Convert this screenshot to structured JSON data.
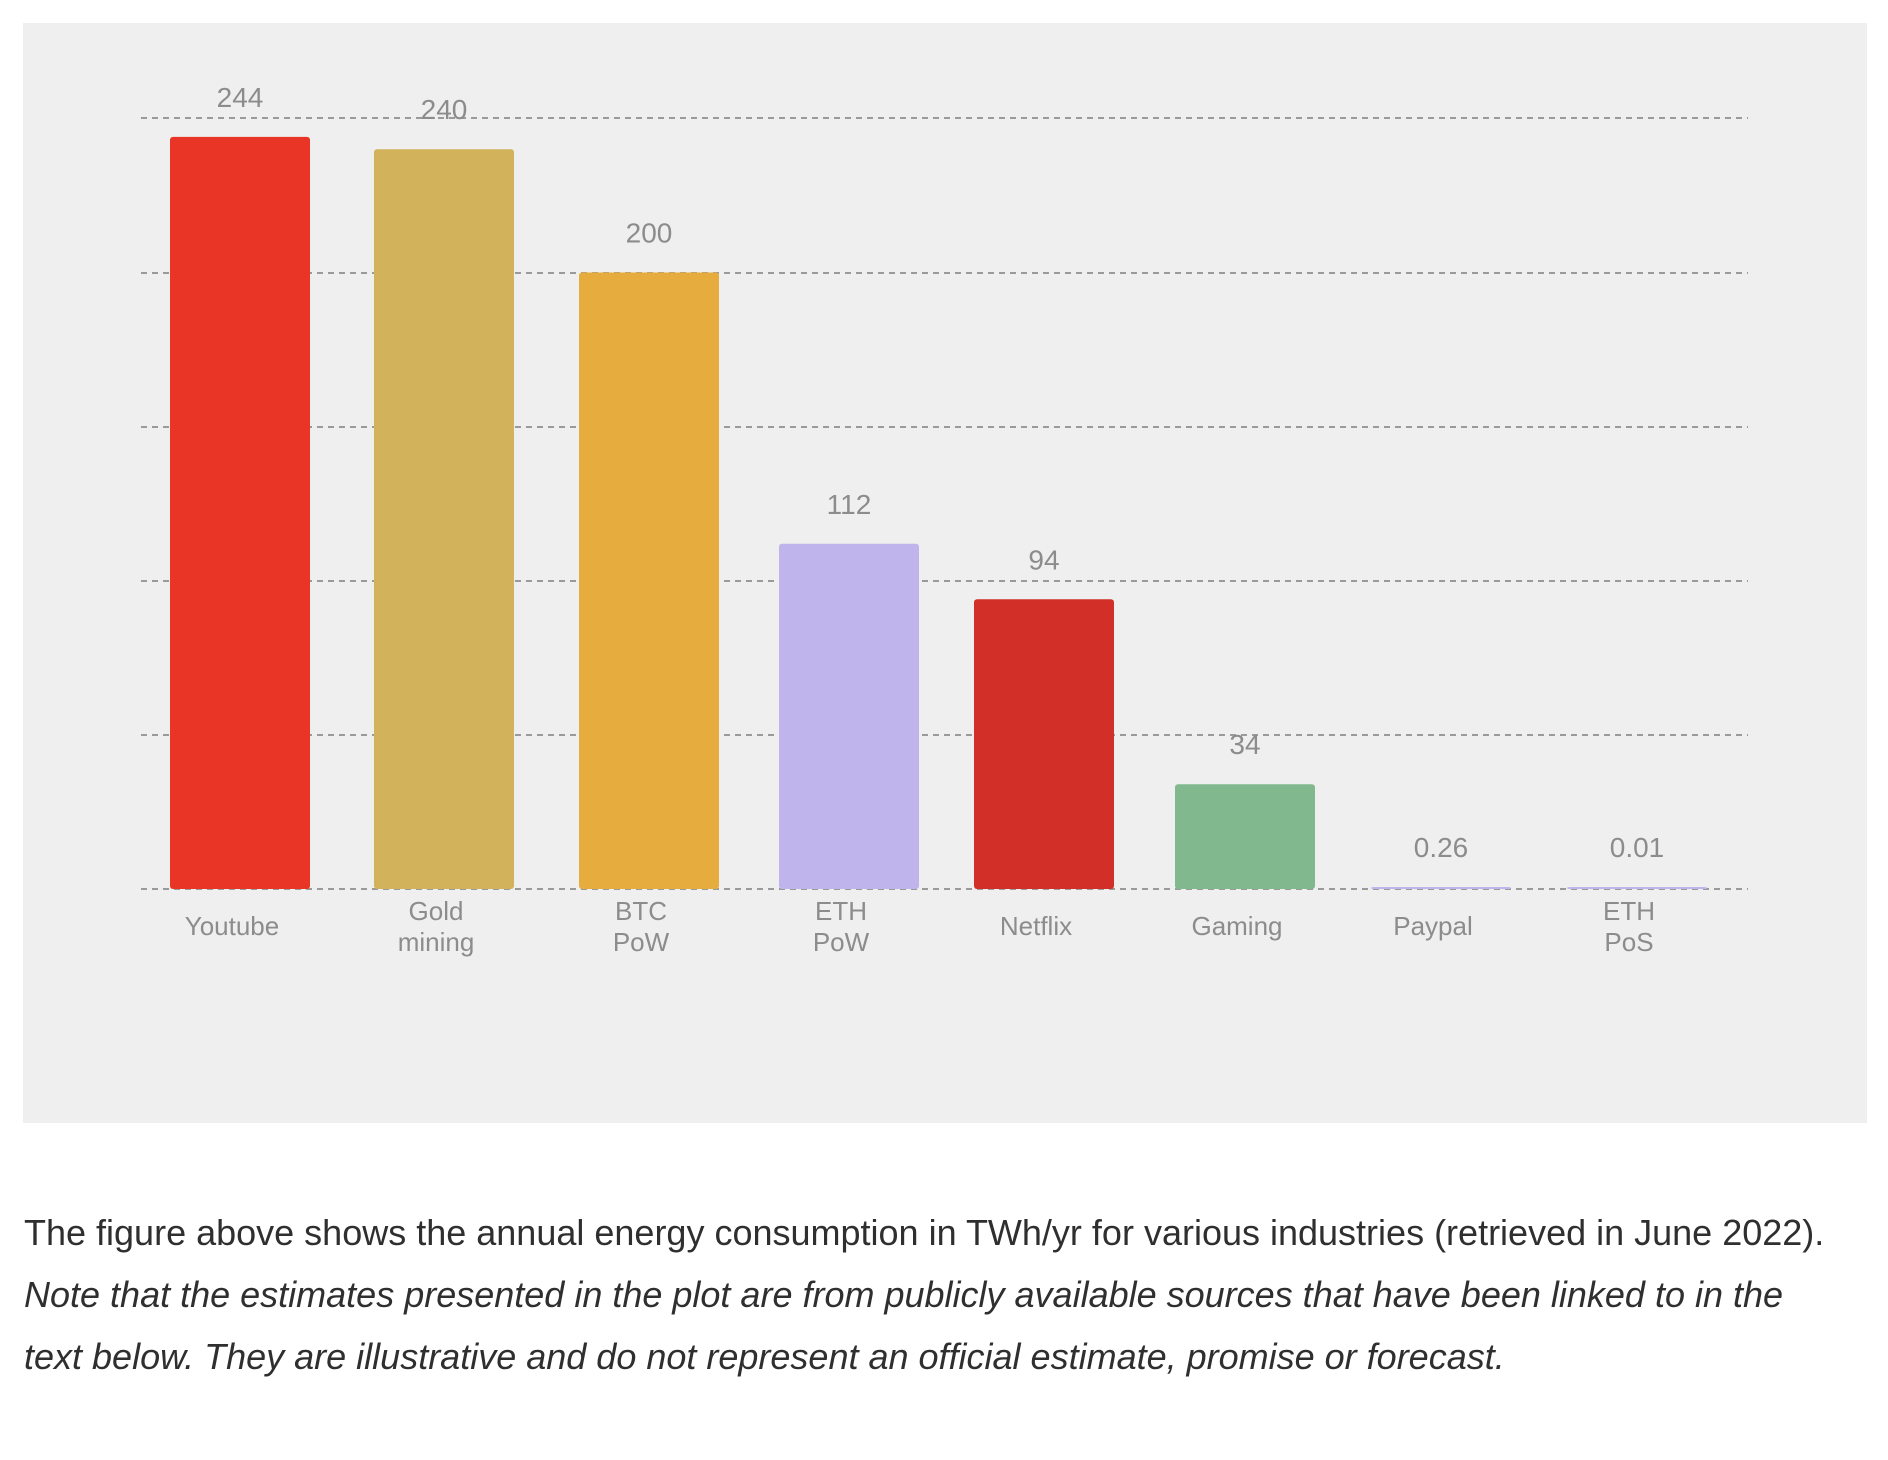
{
  "chart_data": {
    "type": "bar",
    "categories": [
      "Youtube",
      "Gold mining",
      "BTC PoW",
      "ETH PoW",
      "Netflix",
      "Gaming",
      "Paypal",
      "ETH PoS"
    ],
    "category_lines": [
      [
        "Youtube"
      ],
      [
        "Gold",
        "mining"
      ],
      [
        "BTC",
        "PoW"
      ],
      [
        "ETH",
        "PoW"
      ],
      [
        "Netflix"
      ],
      [
        "Gaming"
      ],
      [
        "Paypal"
      ],
      [
        "ETH",
        "PoS"
      ]
    ],
    "values": [
      244,
      240,
      200,
      112,
      94,
      34,
      0.26,
      0.01
    ],
    "value_labels": [
      "244",
      "240",
      "200",
      "112",
      "94",
      "34",
      "0.26",
      "0.01"
    ],
    "colors": [
      "#e83526",
      "#d2b25b",
      "#e6ad3e",
      "#bfb5ec",
      "#d22f28",
      "#82b88e",
      "#bfb5ec",
      "#bfb5ec"
    ],
    "ylim": [
      0,
      255
    ],
    "gridlines": [
      0,
      50,
      100,
      150,
      200,
      250
    ],
    "grid": true,
    "title": "",
    "xlabel": "",
    "ylabel": ""
  },
  "caption": {
    "plain": "The figure above shows the annual energy consumption in TWh/yr for various industries (retrieved in June 2022). ",
    "italic": "Note that the estimates presented in the plot are from publicly available sources that have been linked to in the text below. They are illustrative and do not represent an official estimate, promise or forecast."
  },
  "colors": {
    "panel_background": "#efefef",
    "gridline": "#9a9a9a",
    "label_text": "#8c8c8c",
    "caption_text": "#2f2f2f"
  }
}
